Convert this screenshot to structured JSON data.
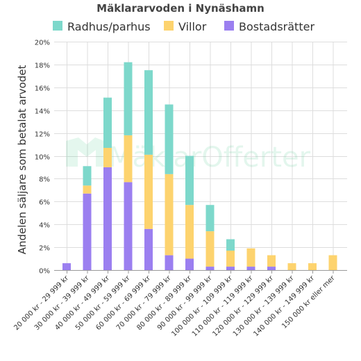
{
  "chart_data": {
    "type": "bar",
    "stacked": true,
    "title": "Mäklararvoden i Nynäshamn",
    "ylabel": "Andelen säljare som betalat arvodet",
    "xlabel": "",
    "ylim": [
      0,
      20
    ],
    "yticks": [
      "0%",
      "2%",
      "4%",
      "6%",
      "8%",
      "10%",
      "12%",
      "14%",
      "16%",
      "18%",
      "20%"
    ],
    "grid": true,
    "legend_position": "top",
    "categories": [
      "20 000 kr - 29 999 kr",
      "30 000 kr - 39 999 kr",
      "40 000 kr - 49 999 kr",
      "50 000 kr - 59 999 kr",
      "60 000 kr - 69 999 kr",
      "70 000 kr - 79 999 kr",
      "80 000 kr - 89 999 kr",
      "90 000 kr - 99 999 kr",
      "100 000 kr - 109 999 kr",
      "110 000 kr - 119 999 kr",
      "120 000 kr - 129 999 kr",
      "130 000 kr - 139 999 kr",
      "140 000 kr - 149 999 kr",
      "150 000 kr eller mer"
    ],
    "series": [
      {
        "name": "Bostadsrätter",
        "color": "#9b7ff0",
        "values": [
          0.6,
          6.7,
          9.0,
          7.7,
          3.6,
          1.3,
          1.0,
          0.3,
          0.3,
          0.3,
          0.3,
          0,
          0,
          0
        ]
      },
      {
        "name": "Villor",
        "color": "#fdd36e",
        "values": [
          0,
          0.7,
          1.7,
          4.1,
          6.5,
          7.1,
          4.7,
          3.1,
          1.4,
          1.6,
          1.0,
          0.6,
          0.6,
          1.3
        ]
      },
      {
        "name": "Radhus/parhus",
        "color": "#7dd8cb",
        "values": [
          0,
          1.7,
          4.4,
          6.4,
          7.4,
          6.1,
          4.3,
          2.3,
          1.0,
          0,
          0,
          0,
          0,
          0
        ]
      }
    ],
    "legend_order": [
      "Radhus/parhus",
      "Villor",
      "Bostadsrätter"
    ]
  },
  "watermark": {
    "part1": "Mäklar",
    "part2": "Offerter"
  }
}
